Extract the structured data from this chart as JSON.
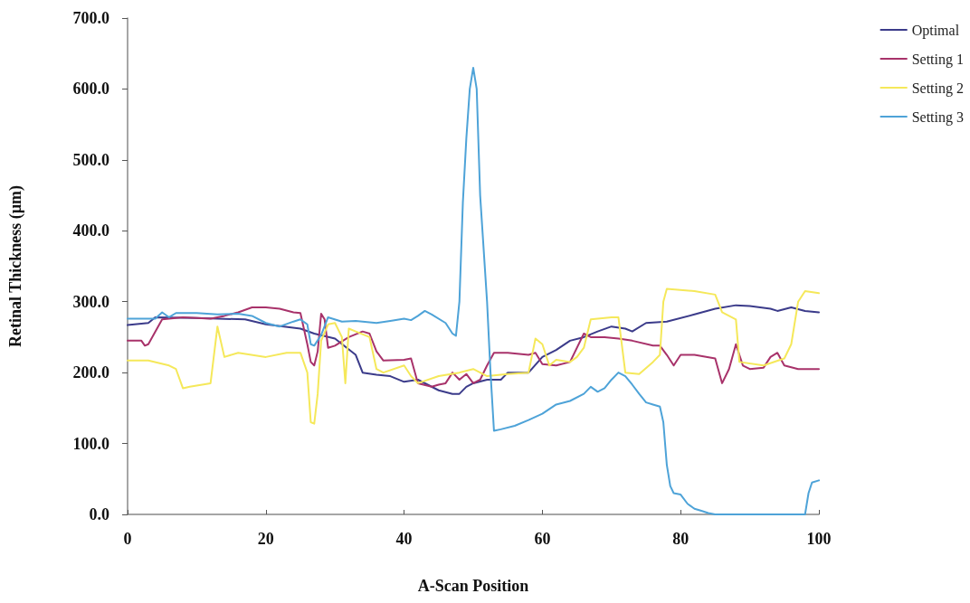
{
  "chart_data": {
    "type": "line",
    "xlabel": "A-Scan Position",
    "ylabel": "Retinal Thickness (µm)",
    "xlim": [
      0,
      100
    ],
    "xticks": [
      0,
      20,
      40,
      60,
      80,
      100
    ],
    "ylim": [
      0,
      700
    ],
    "yticks": [
      {
        "value": 0,
        "label": "0.0"
      },
      {
        "value": 100,
        "label": "100.0"
      },
      {
        "value": 200,
        "label": "200.0"
      },
      {
        "value": 300,
        "label": "300.0"
      },
      {
        "value": 400,
        "label": "400.0"
      },
      {
        "value": 500,
        "label": "500.0"
      },
      {
        "value": 600,
        "label": "600.0"
      },
      {
        "value": 700,
        "label": "700.0"
      }
    ],
    "grid": false,
    "legend": "top right",
    "marker": "none",
    "line_style": "solid",
    "series": [
      {
        "name": "Optimal",
        "color": "#3b3b8a",
        "x": [
          0,
          3,
          4,
          10,
          17,
          20,
          25,
          27,
          30,
          33,
          34,
          36,
          38,
          40,
          42,
          45,
          47,
          48,
          49,
          50,
          52,
          54,
          55,
          58,
          60,
          62,
          64,
          66,
          68,
          70,
          72,
          73,
          75,
          78,
          82,
          85,
          88,
          90,
          93,
          94,
          96,
          98,
          100
        ],
        "values": [
          267,
          270,
          278,
          277,
          275,
          268,
          262,
          255,
          248,
          225,
          200,
          197,
          195,
          187,
          190,
          175,
          170,
          170,
          180,
          185,
          190,
          190,
          200,
          200,
          222,
          232,
          245,
          250,
          258,
          265,
          262,
          258,
          270,
          272,
          282,
          290,
          295,
          294,
          290,
          287,
          292,
          287,
          285
        ]
      },
      {
        "name": "Setting 1",
        "color": "#a8326a",
        "x": [
          0,
          2,
          2.5,
          3,
          5,
          8,
          12,
          14,
          16,
          18,
          20,
          22,
          24,
          25,
          26,
          26.5,
          27,
          27.5,
          28,
          28.5,
          29,
          30,
          32,
          34,
          35,
          36,
          37,
          40,
          41,
          42,
          44,
          45,
          46,
          47,
          48,
          49,
          50,
          51,
          52,
          53,
          55,
          58,
          59,
          60,
          62,
          64,
          66,
          67,
          69,
          71,
          73,
          76,
          77,
          78,
          79,
          80,
          82,
          85,
          86,
          87,
          88,
          89,
          90,
          92,
          93,
          94,
          95,
          97,
          100
        ],
        "values": [
          245,
          245,
          238,
          240,
          275,
          278,
          276,
          280,
          285,
          292,
          292,
          290,
          285,
          284,
          240,
          215,
          210,
          230,
          283,
          275,
          235,
          238,
          250,
          258,
          255,
          230,
          217,
          218,
          220,
          185,
          180,
          183,
          185,
          200,
          190,
          198,
          185,
          190,
          210,
          228,
          228,
          225,
          228,
          212,
          210,
          215,
          255,
          250,
          250,
          248,
          245,
          238,
          238,
          225,
          210,
          225,
          225,
          220,
          185,
          205,
          240,
          210,
          205,
          207,
          222,
          228,
          210,
          205,
          205
        ]
      },
      {
        "name": "Setting 2",
        "color": "#f5e85a",
        "x": [
          0,
          3,
          6,
          7,
          8,
          9,
          12,
          13,
          14,
          16,
          20,
          23,
          25,
          26,
          26.5,
          27,
          27.5,
          28,
          29,
          30,
          31,
          31.5,
          32,
          33,
          35,
          36,
          37,
          40,
          41,
          42,
          45,
          48,
          50,
          52,
          55,
          58,
          59,
          60,
          61,
          62,
          64,
          65,
          66,
          67,
          70,
          71,
          72,
          74,
          76,
          77,
          77.5,
          78,
          82,
          85,
          86,
          88,
          88.5,
          92,
          95,
          96,
          97,
          98,
          100
        ],
        "values": [
          217,
          217,
          210,
          205,
          178,
          180,
          185,
          265,
          222,
          228,
          222,
          228,
          228,
          200,
          130,
          128,
          170,
          245,
          268,
          270,
          250,
          185,
          262,
          258,
          250,
          205,
          200,
          210,
          195,
          185,
          195,
          200,
          205,
          195,
          198,
          200,
          248,
          240,
          210,
          218,
          215,
          222,
          235,
          275,
          278,
          278,
          200,
          198,
          215,
          225,
          300,
          318,
          315,
          310,
          285,
          275,
          215,
          210,
          220,
          240,
          300,
          315,
          312
        ]
      },
      {
        "name": "Setting 3",
        "color": "#4ea3d8",
        "x": [
          0,
          4,
          5,
          6,
          7,
          10,
          13,
          16,
          18,
          20,
          22,
          24,
          25,
          26,
          26.5,
          27,
          28,
          29,
          31,
          33,
          34,
          36,
          38,
          40,
          41,
          42,
          43,
          44,
          46,
          47,
          47.5,
          48,
          48.5,
          49,
          49.5,
          50,
          50.5,
          51,
          52,
          52.5,
          53,
          54,
          56,
          58,
          60,
          62,
          64,
          66,
          67,
          68,
          69,
          70,
          71,
          72,
          73,
          74,
          75,
          76,
          77,
          77.5,
          78,
          78.5,
          79,
          80,
          81,
          82,
          83,
          84,
          85,
          90,
          95,
          97,
          98,
          98.5,
          99,
          100
        ],
        "values": [
          276,
          276,
          285,
          278,
          284,
          284,
          282,
          283,
          280,
          270,
          265,
          272,
          275,
          268,
          240,
          238,
          253,
          278,
          272,
          273,
          272,
          270,
          273,
          276,
          274,
          280,
          287,
          282,
          270,
          255,
          252,
          300,
          440,
          530,
          600,
          630,
          600,
          450,
          300,
          200,
          118,
          120,
          125,
          133,
          142,
          155,
          160,
          170,
          180,
          173,
          178,
          190,
          200,
          195,
          183,
          170,
          158,
          155,
          152,
          130,
          70,
          40,
          30,
          28,
          15,
          8,
          5,
          2,
          0,
          0,
          0,
          0,
          0,
          30,
          45,
          48
        ]
      }
    ]
  }
}
